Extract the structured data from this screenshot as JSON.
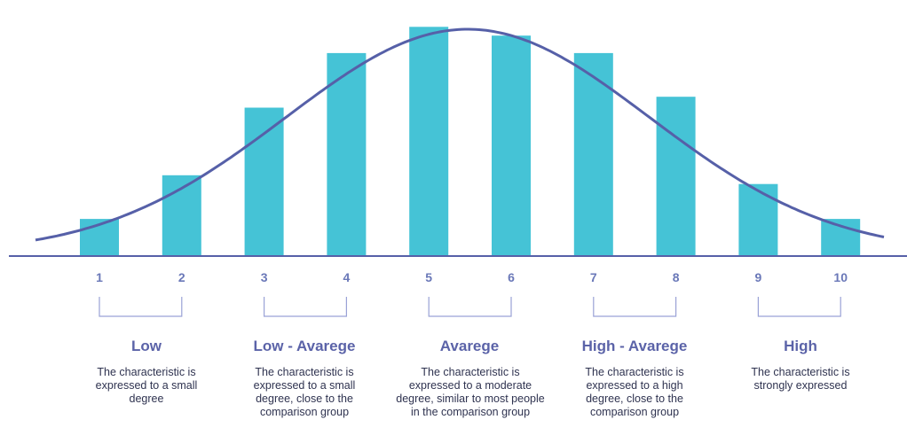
{
  "chart_data": {
    "type": "bar",
    "categories": [
      "1",
      "2",
      "3",
      "4",
      "5",
      "6",
      "7",
      "8",
      "9",
      "10"
    ],
    "values": [
      1.7,
      3.7,
      6.8,
      9.3,
      10.5,
      10.1,
      9.3,
      7.3,
      3.3,
      1.7
    ],
    "ylim": [
      0,
      11
    ],
    "curve": "normal distribution overlay (bell curve) peaking between 5 and 6",
    "grid": false,
    "colors": {
      "bars": "#45c3d6",
      "curve": "#5660a8",
      "axis": "#5660a8",
      "labels": "#6a78b8",
      "bracket": "#9aa2d6"
    },
    "groups": [
      {
        "title": "Low",
        "range": [
          "1",
          "2"
        ],
        "description": "The characteristic is expressed to a small degree"
      },
      {
        "title": "Low - Avarege",
        "range": [
          "3",
          "4"
        ],
        "description": "The characteristic is expressed to a small degree, close to the comparison group"
      },
      {
        "title": "Avarege",
        "range": [
          "5",
          "6"
        ],
        "description": "The characteristic is expressed to a moderate degree, similar to most people in the comparison group"
      },
      {
        "title": "High - Avarege",
        "range": [
          "7",
          "8"
        ],
        "description": "The characteristic is expressed to a high degree, close to the comparison group"
      },
      {
        "title": "High",
        "range": [
          "9",
          "10"
        ],
        "description": "The characteristic is strongly expressed"
      }
    ]
  }
}
